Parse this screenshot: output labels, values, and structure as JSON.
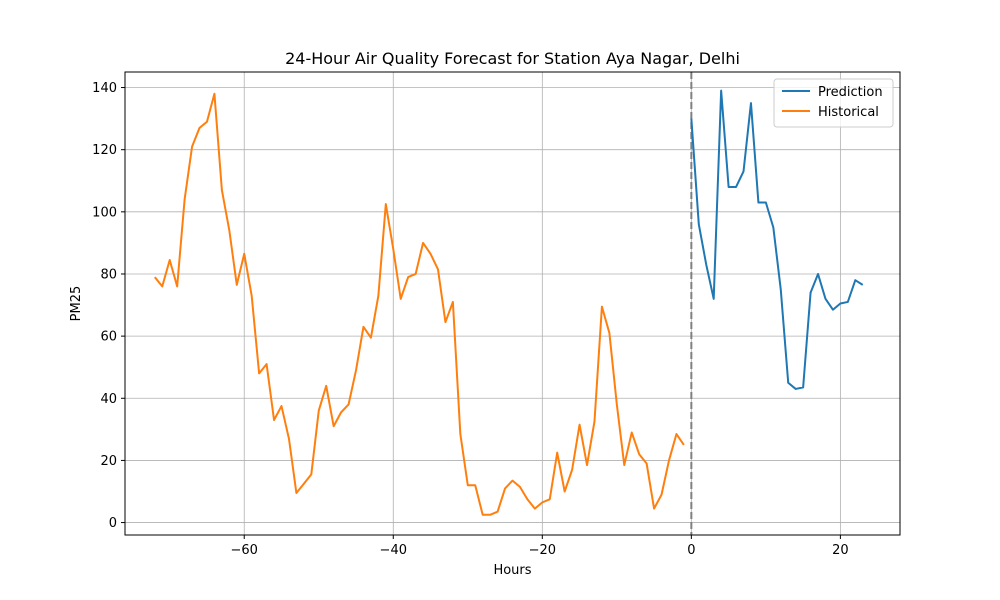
{
  "chart_data": {
    "type": "line",
    "title": "24-Hour Air Quality Forecast for Station Aya Nagar, Delhi",
    "xlabel": "Hours",
    "ylabel": "PM25",
    "xlim": [
      -76,
      28
    ],
    "ylim": [
      -4,
      145
    ],
    "xticks": [
      -60,
      -40,
      -20,
      0,
      20
    ],
    "xtick_labels": [
      "−60",
      "−40",
      "−20",
      "0",
      "20"
    ],
    "yticks": [
      0,
      20,
      40,
      60,
      80,
      100,
      120,
      140
    ],
    "ytick_labels": [
      "0",
      "20",
      "40",
      "60",
      "80",
      "100",
      "120",
      "140"
    ],
    "grid": true,
    "legend_position": "upper right",
    "vline": {
      "x": 0,
      "color": "#808080",
      "style": "dashed"
    },
    "series": [
      {
        "name": "Prediction",
        "color": "#1f77b4",
        "x": [
          0,
          1,
          2,
          3,
          4,
          5,
          6,
          7,
          8,
          9,
          10,
          11,
          12,
          13,
          14,
          15,
          16,
          17,
          18,
          19,
          20,
          21,
          22,
          23
        ],
        "y": [
          130,
          96,
          83,
          72,
          139,
          108,
          108,
          113,
          135,
          103,
          103,
          95,
          75,
          45,
          43,
          43.5,
          74,
          80,
          72,
          68.5,
          70.5,
          71,
          78,
          76.5
        ]
      },
      {
        "name": "Historical",
        "color": "#ff7f0e",
        "x": [
          -72,
          -71,
          -70,
          -69,
          -68,
          -67,
          -66,
          -65,
          -64,
          -63,
          -62,
          -61,
          -60,
          -59,
          -58,
          -57,
          -56,
          -55,
          -54,
          -53,
          -52,
          -51,
          -50,
          -49,
          -48,
          -47,
          -46,
          -45,
          -44,
          -43,
          -42,
          -41,
          -40,
          -39,
          -38,
          -37,
          -36,
          -35,
          -34,
          -33,
          -32,
          -31,
          -30,
          -29,
          -28,
          -27,
          -26,
          -25,
          -24,
          -23,
          -22,
          -21,
          -20,
          -19,
          -18,
          -17,
          -16,
          -15,
          -14,
          -13,
          -12,
          -11,
          -10,
          -9,
          -8,
          -7,
          -6,
          -5,
          -4,
          -3,
          -2,
          -1
        ],
        "y": [
          79,
          76,
          84.5,
          76,
          104,
          121,
          127,
          129,
          138,
          107,
          94,
          76.5,
          86.5,
          73,
          48,
          51,
          33,
          37.5,
          27,
          9.5,
          12.5,
          15.5,
          36,
          44,
          31,
          35.5,
          38,
          49,
          63,
          59.5,
          73,
          102.5,
          88,
          72,
          79,
          80,
          90,
          86.5,
          81.5,
          64.5,
          71,
          28.5,
          12,
          12,
          2.5,
          2.5,
          3.5,
          11,
          13.5,
          11.5,
          7.5,
          4.5,
          6.5,
          7.5,
          22.5,
          10,
          17,
          31.5,
          18.5,
          32.5,
          69.5,
          61,
          38,
          18.5,
          29,
          22,
          19,
          4.5,
          9,
          20,
          28.5,
          25
        ]
      }
    ]
  }
}
